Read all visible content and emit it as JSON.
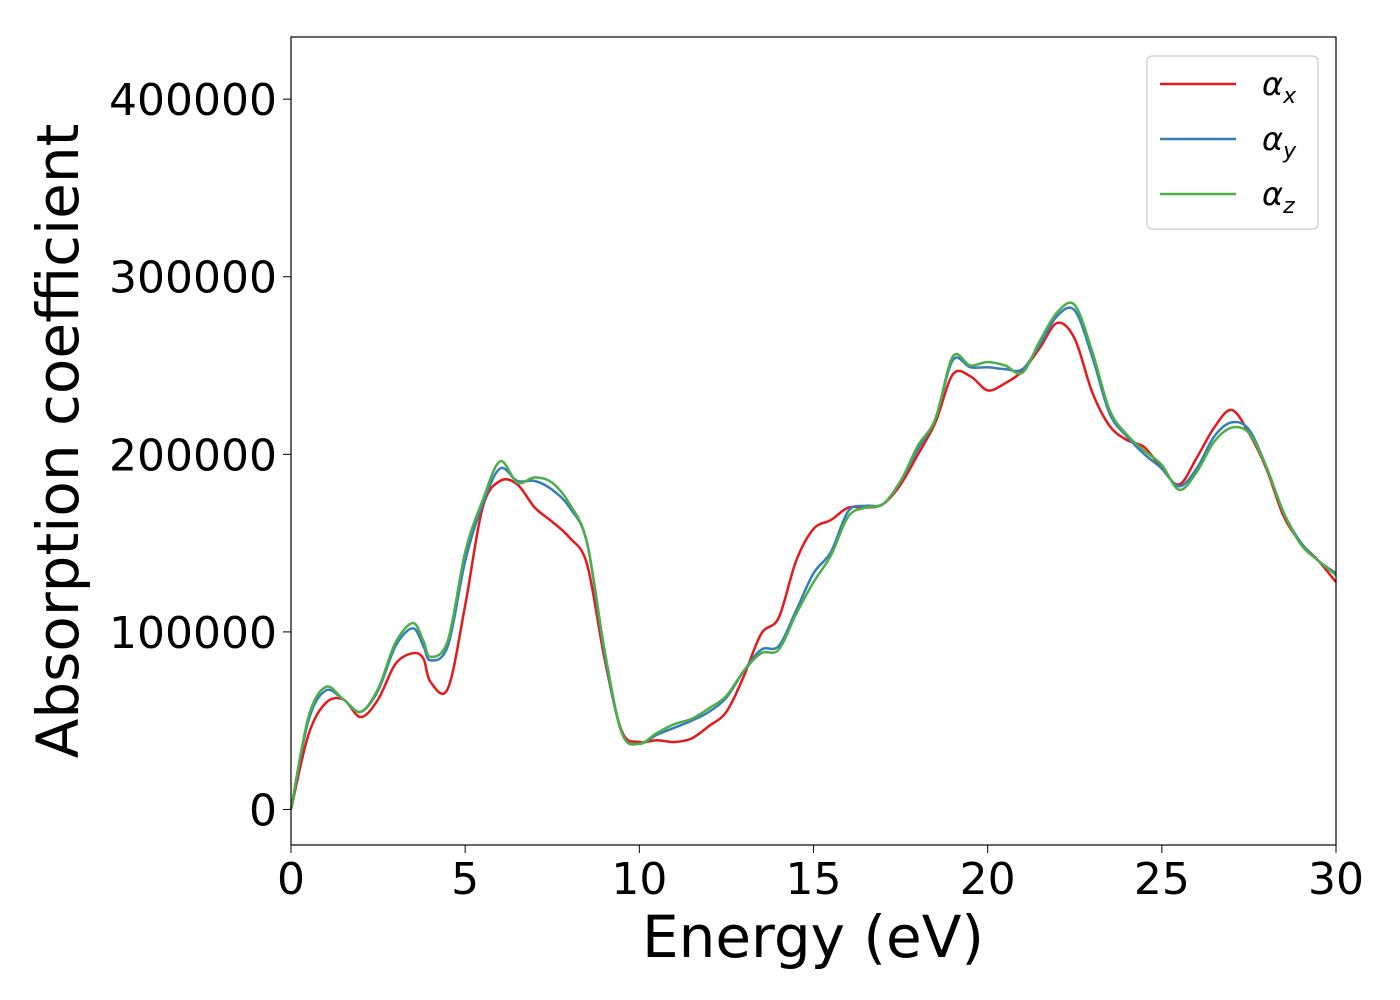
{
  "chart_data": {
    "type": "line",
    "title": "",
    "xlabel": "Energy (eV)",
    "ylabel": "Absorption coefficient",
    "xlim": [
      0,
      30
    ],
    "ylim": [
      -20000,
      435000
    ],
    "xticks": [
      "0",
      "5",
      "10",
      "15",
      "20",
      "25",
      "30"
    ],
    "yticks": [
      "0",
      "100000",
      "200000",
      "300000",
      "400000"
    ],
    "grid": false,
    "legend_position": "top-right",
    "x": [
      0,
      0.5,
      1.0,
      1.5,
      2.0,
      2.5,
      3.0,
      3.5,
      3.8,
      4.0,
      4.5,
      5.0,
      5.5,
      6.0,
      6.5,
      7.0,
      7.5,
      8.0,
      8.5,
      9.0,
      9.5,
      10.0,
      10.5,
      11.0,
      11.5,
      12.0,
      12.5,
      13.0,
      13.5,
      14.0,
      14.5,
      15.0,
      15.5,
      16.0,
      16.5,
      17.0,
      17.5,
      18.0,
      18.5,
      19.0,
      19.5,
      20.0,
      20.5,
      21.0,
      21.5,
      22.0,
      22.5,
      23.0,
      23.5,
      24.0,
      24.5,
      25.0,
      25.5,
      26.0,
      26.5,
      27.0,
      27.5,
      28.0,
      28.5,
      29.0,
      29.5,
      30.0
    ],
    "series": [
      {
        "name": "αx",
        "color": "#e41a1c",
        "values": [
          0,
          42000,
          60000,
          62000,
          52000,
          62000,
          82000,
          88000,
          85000,
          72000,
          68000,
          115000,
          170000,
          185000,
          183000,
          170000,
          162000,
          153000,
          138000,
          85000,
          44000,
          38000,
          39000,
          38000,
          40000,
          47000,
          55000,
          75000,
          99000,
          108000,
          140000,
          158000,
          163000,
          170000,
          170000,
          172000,
          183000,
          200000,
          218000,
          245000,
          244000,
          236000,
          240000,
          247000,
          260000,
          274000,
          265000,
          235000,
          216000,
          208000,
          204000,
          192000,
          183000,
          198000,
          215000,
          225000,
          212000,
          192000,
          165000,
          150000,
          140000,
          128000
        ]
      },
      {
        "name": "αy",
        "color": "#377eb8",
        "values": [
          0,
          50000,
          67000,
          62000,
          55000,
          67000,
          92000,
          102000,
          92000,
          84000,
          92000,
          140000,
          172000,
          192000,
          185000,
          185000,
          180000,
          170000,
          150000,
          88000,
          43000,
          37000,
          42000,
          46000,
          50000,
          55000,
          63000,
          78000,
          90000,
          92000,
          112000,
          133000,
          145000,
          168000,
          171000,
          172000,
          185000,
          203000,
          220000,
          253000,
          249000,
          249000,
          248000,
          248000,
          262000,
          278000,
          281000,
          255000,
          223000,
          210000,
          200000,
          192000,
          182000,
          192000,
          210000,
          218000,
          214000,
          193000,
          167000,
          150000,
          140000,
          133000
        ]
      },
      {
        "name": "αz",
        "color": "#4daf4a",
        "values": [
          0,
          52000,
          69000,
          62000,
          55000,
          68000,
          94000,
          105000,
          95000,
          86000,
          95000,
          145000,
          174000,
          196000,
          184000,
          187000,
          184000,
          172000,
          150000,
          90000,
          43000,
          37000,
          43000,
          48000,
          51000,
          57000,
          64000,
          78000,
          88000,
          90000,
          110000,
          128000,
          143000,
          165000,
          170000,
          172000,
          185000,
          205000,
          220000,
          255000,
          250000,
          252000,
          250000,
          246000,
          264000,
          280000,
          284000,
          258000,
          225000,
          211000,
          202000,
          194000,
          180000,
          190000,
          207000,
          215000,
          212000,
          193000,
          167000,
          149000,
          140000,
          132000
        ]
      }
    ]
  },
  "legend": {
    "items": [
      {
        "symbol": "α",
        "sub": "x",
        "color": "#e41a1c"
      },
      {
        "symbol": "α",
        "sub": "y",
        "color": "#377eb8"
      },
      {
        "symbol": "α",
        "sub": "z",
        "color": "#4daf4a"
      }
    ]
  }
}
